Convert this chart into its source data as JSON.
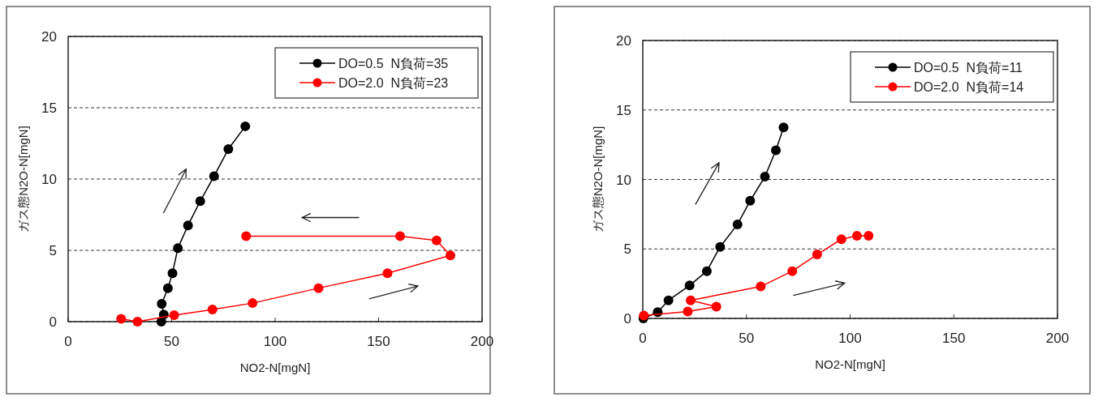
{
  "chart_data": [
    {
      "type": "line",
      "xlabel": "NO2-N[mgN]",
      "ylabel": "ガス態N2O-N[mgN]",
      "xlim": [
        0,
        200
      ],
      "xticks": [
        0,
        50,
        100,
        150,
        200
      ],
      "ylim": [
        0,
        20
      ],
      "yticks": [
        0,
        5,
        10,
        15,
        20
      ],
      "grid": "y",
      "legend": "top right",
      "marker": "circle",
      "line_style": "solid",
      "series": [
        {
          "name": "DO=0.5  N負荷=35",
          "color": "#000000",
          "x": [
            45,
            46.2,
            45.2,
            48.2,
            50.4,
            53,
            57.9,
            63.8,
            70.5,
            77.4,
            85.6
          ],
          "values": [
            0,
            0.5,
            1.25,
            2.35,
            3.4,
            5.15,
            6.75,
            8.45,
            10.2,
            12.1,
            13.7
          ]
        },
        {
          "name": "DO=2.0  N負荷=23",
          "color": "#ff0000",
          "x": [
            25.6,
            33.5,
            51.2,
            69.7,
            89.1,
            121,
            154.3,
            184.7,
            178,
            160.4,
            86
          ],
          "values": [
            0.2,
            0,
            0.45,
            0.85,
            1.3,
            2.35,
            3.4,
            4.65,
            5.7,
            6,
            6
          ]
        }
      ]
    },
    {
      "type": "line",
      "xlabel": "NO2-N[mgN]",
      "ylabel": "ガス態N2O-N[mgN]",
      "xlim": [
        0,
        200
      ],
      "xticks": [
        0,
        50,
        100,
        150,
        200
      ],
      "ylim": [
        0,
        20
      ],
      "yticks": [
        0,
        5,
        10,
        15,
        20
      ],
      "grid": "y",
      "legend": "top right",
      "marker": "circle",
      "line_style": "solid",
      "series": [
        {
          "name": "DO=0.5  N負荷=11",
          "color": "#000000",
          "x": [
            0.3,
            7.2,
            12.4,
            22.6,
            30.9,
            37.3,
            45.7,
            51.8,
            58.9,
            64.2,
            67.9
          ],
          "values": [
            0,
            0.45,
            1.3,
            2.37,
            3.4,
            5.15,
            6.77,
            8.47,
            10.2,
            12.1,
            13.75
          ]
        },
        {
          "name": "DO=2.0  N負荷=14",
          "color": "#ff0000",
          "x": [
            0.5,
            21.7,
            35.5,
            23.1,
            56.9,
            72.1,
            84.1,
            95.8,
            103.3,
            108.9
          ],
          "values": [
            0.2,
            0.5,
            0.85,
            1.3,
            2.3,
            3.4,
            4.6,
            5.7,
            5.95,
            5.95
          ]
        }
      ]
    }
  ]
}
